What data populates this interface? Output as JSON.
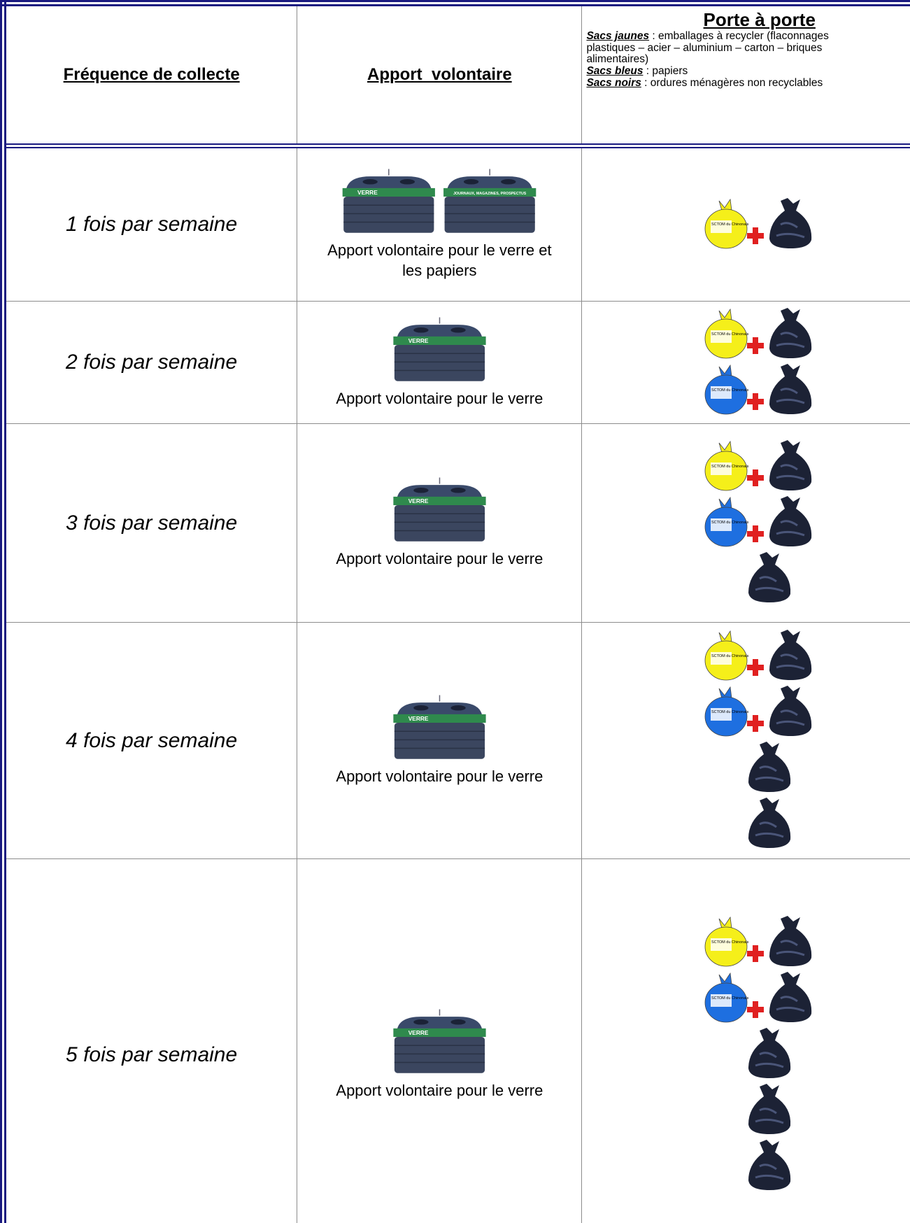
{
  "header": {
    "frequency": "Fréquence de collecte",
    "drop_off": "Apport  volontaire",
    "door_to_door": {
      "title": "Porte à porte",
      "items": [
        {
          "label": "Sacs jaunes",
          "text": " : emballages à recycler (flaconnages plastiques – acier – aluminium – carton – briques alimentaires)"
        },
        {
          "label": "Sacs bleus",
          "text": " : papiers"
        },
        {
          "label": "Sacs noirs",
          "text": " : ordures ménagères non recyclables"
        }
      ]
    }
  },
  "rows": [
    {
      "frequency": "1 fois par semaine",
      "containers": [
        {
          "label": "VERRE"
        },
        {
          "label": "JOURNAUX, MAGAZINES, PROSPECTUS"
        }
      ],
      "caption": "Apport volontaire pour le verre et les papiers",
      "bags": [
        {
          "color": "#f5ef1a",
          "label": "SCTOM du Chinonais"
        },
        {
          "color": "#1c2235"
        }
      ]
    },
    {
      "frequency": "2 fois par semaine",
      "containers": [
        {
          "label": "VERRE"
        }
      ],
      "caption": "Apport volontaire pour le verre",
      "bags": [
        {
          "color": "#f5ef1a",
          "label": "SCTOM du Chinonais"
        },
        {
          "color": "#1c2235"
        },
        {
          "color": "#1e6fe0",
          "label": "SCTOM du Chinonais"
        },
        {
          "color": "#1c2235"
        }
      ]
    },
    {
      "frequency": "3 fois par semaine",
      "containers": [
        {
          "label": "VERRE"
        }
      ],
      "caption": "Apport volontaire pour le verre",
      "bags": [
        {
          "color": "#f5ef1a",
          "label": "SCTOM du Chinonais"
        },
        {
          "color": "#1c2235"
        },
        {
          "color": "#1e6fe0",
          "label": "SCTOM du Chinonais"
        },
        {
          "color": "#1c2235"
        },
        {
          "color": "#1c2235"
        }
      ]
    },
    {
      "frequency": "4 fois par semaine",
      "containers": [
        {
          "label": "VERRE"
        }
      ],
      "caption": "Apport volontaire pour le verre",
      "bags": [
        {
          "color": "#f5ef1a",
          "label": "SCTOM du Chinonais"
        },
        {
          "color": "#1c2235"
        },
        {
          "color": "#1e6fe0",
          "label": "SCTOM du Chinonais"
        },
        {
          "color": "#1c2235"
        },
        {
          "color": "#1c2235"
        },
        {
          "color": "#1c2235"
        }
      ]
    },
    {
      "frequency": "5 fois par semaine",
      "containers": [
        {
          "label": "VERRE"
        }
      ],
      "caption": "Apport volontaire pour le verre",
      "bags": [
        {
          "color": "#f5ef1a",
          "label": "SCTOM du Chinonais"
        },
        {
          "color": "#1c2235"
        },
        {
          "color": "#1e6fe0",
          "label": "SCTOM du Chinonais"
        },
        {
          "color": "#1c2235"
        },
        {
          "color": "#1c2235"
        },
        {
          "color": "#1c2235"
        },
        {
          "color": "#1c2235"
        }
      ]
    }
  ]
}
